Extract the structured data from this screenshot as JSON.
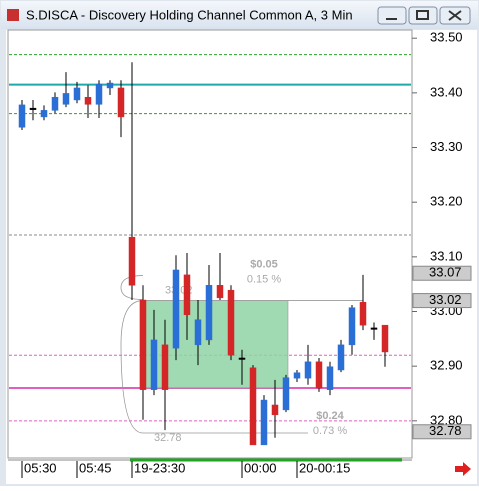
{
  "chart_data": {
    "type": "candlestick",
    "title": "S.DISCA - Discovery Holding Channel Common A, 3 Min",
    "categories": [
      "05:30",
      null,
      null,
      null,
      null,
      "05:45",
      null,
      null,
      null,
      null,
      "19-23:30",
      null,
      null,
      null,
      null,
      null,
      null,
      null,
      null,
      null,
      "00:00",
      null,
      null,
      null,
      null,
      "20-00:15",
      null,
      null,
      null,
      null,
      null,
      null,
      null,
      null
    ],
    "open": [
      33.337,
      33.372,
      33.356,
      33.368,
      33.379,
      33.387,
      33.392,
      33.379,
      33.409,
      33.409,
      33.136,
      33.021,
      32.857,
      32.939,
      32.933,
      33.067,
      32.939,
      32.948,
      33.048,
      33.039,
      32.915,
      32.897,
      32.756,
      32.829,
      32.82,
      32.878,
      32.878,
      32.908,
      32.857,
      32.893,
      32.939,
      33.017,
      32.97,
      32.975
    ],
    "high": [
      33.387,
      33.387,
      33.377,
      33.401,
      33.438,
      33.42,
      33.414,
      33.423,
      33.423,
      33.423,
      33.456,
      33.048,
      33.003,
      32.985,
      33.103,
      33.107,
      33.021,
      33.085,
      33.107,
      33.048,
      32.93,
      32.902,
      32.847,
      32.875,
      32.884,
      32.893,
      32.939,
      32.915,
      32.908,
      32.948,
      33.012,
      33.067,
      32.98,
      32.975
    ],
    "low": [
      33.332,
      33.35,
      33.35,
      33.363,
      33.374,
      33.381,
      33.354,
      33.354,
      33.396,
      33.319,
      33.021,
      32.802,
      32.847,
      32.783,
      32.911,
      32.948,
      32.902,
      32.939,
      33.021,
      32.911,
      32.866,
      32.756,
      32.756,
      32.769,
      32.816,
      32.871,
      32.866,
      32.853,
      32.847,
      32.889,
      32.921,
      32.966,
      32.948,
      32.899
    ],
    "close": [
      33.378,
      33.372,
      33.368,
      33.392,
      33.399,
      33.409,
      33.379,
      33.416,
      33.418,
      33.356,
      33.048,
      32.857,
      32.948,
      32.857,
      33.076,
      32.994,
      32.985,
      33.048,
      33.025,
      32.92,
      32.915,
      32.756,
      32.838,
      32.811,
      32.879,
      32.888,
      32.908,
      32.86,
      32.899,
      32.939,
      33.007,
      32.975,
      32.97,
      32.926
    ],
    "up_color": "#2a6fd6",
    "down_color": "#d42626",
    "flat_color": "#000000",
    "ylim": [
      32.732,
      33.515
    ],
    "yticks": [
      {
        "value": 33.5,
        "label": "33.50"
      },
      {
        "value": 33.4,
        "label": "33.40"
      },
      {
        "value": 33.3,
        "label": "33.30"
      },
      {
        "value": 33.2,
        "label": "33.20"
      },
      {
        "value": 33.1,
        "label": "33.10"
      },
      {
        "value": 33.0,
        "label": "33.00"
      },
      {
        "value": 32.9,
        "label": "32.90"
      },
      {
        "value": 32.8,
        "label": "32.80"
      }
    ],
    "price_tags": [
      33.07,
      33.02,
      32.78
    ],
    "levels": [
      {
        "value": 33.47,
        "color": "#2ca02c",
        "dash": true
      },
      {
        "value": 33.415,
        "color": "#20a8a8",
        "dash": false
      },
      {
        "value": 33.362,
        "color": "#2ca02c",
        "dash": true
      },
      {
        "value": 33.14,
        "color": "#888888",
        "dash": true
      },
      {
        "value": 32.92,
        "color": "#e060c0",
        "dash": true
      },
      {
        "value": 32.86,
        "color": "#e060c0",
        "dash": false
      },
      {
        "value": 32.8,
        "color": "#e060c0",
        "dash": true
      }
    ],
    "highlight": {
      "from": 33.02,
      "to": 32.86,
      "color": "#8fd4a4"
    },
    "measures": [
      {
        "change": "$0.05",
        "percent": "0.15 %",
        "start": "33.02"
      },
      {
        "change": "$0.24",
        "percent": "0.73 %",
        "start": "32.78"
      }
    ]
  }
}
